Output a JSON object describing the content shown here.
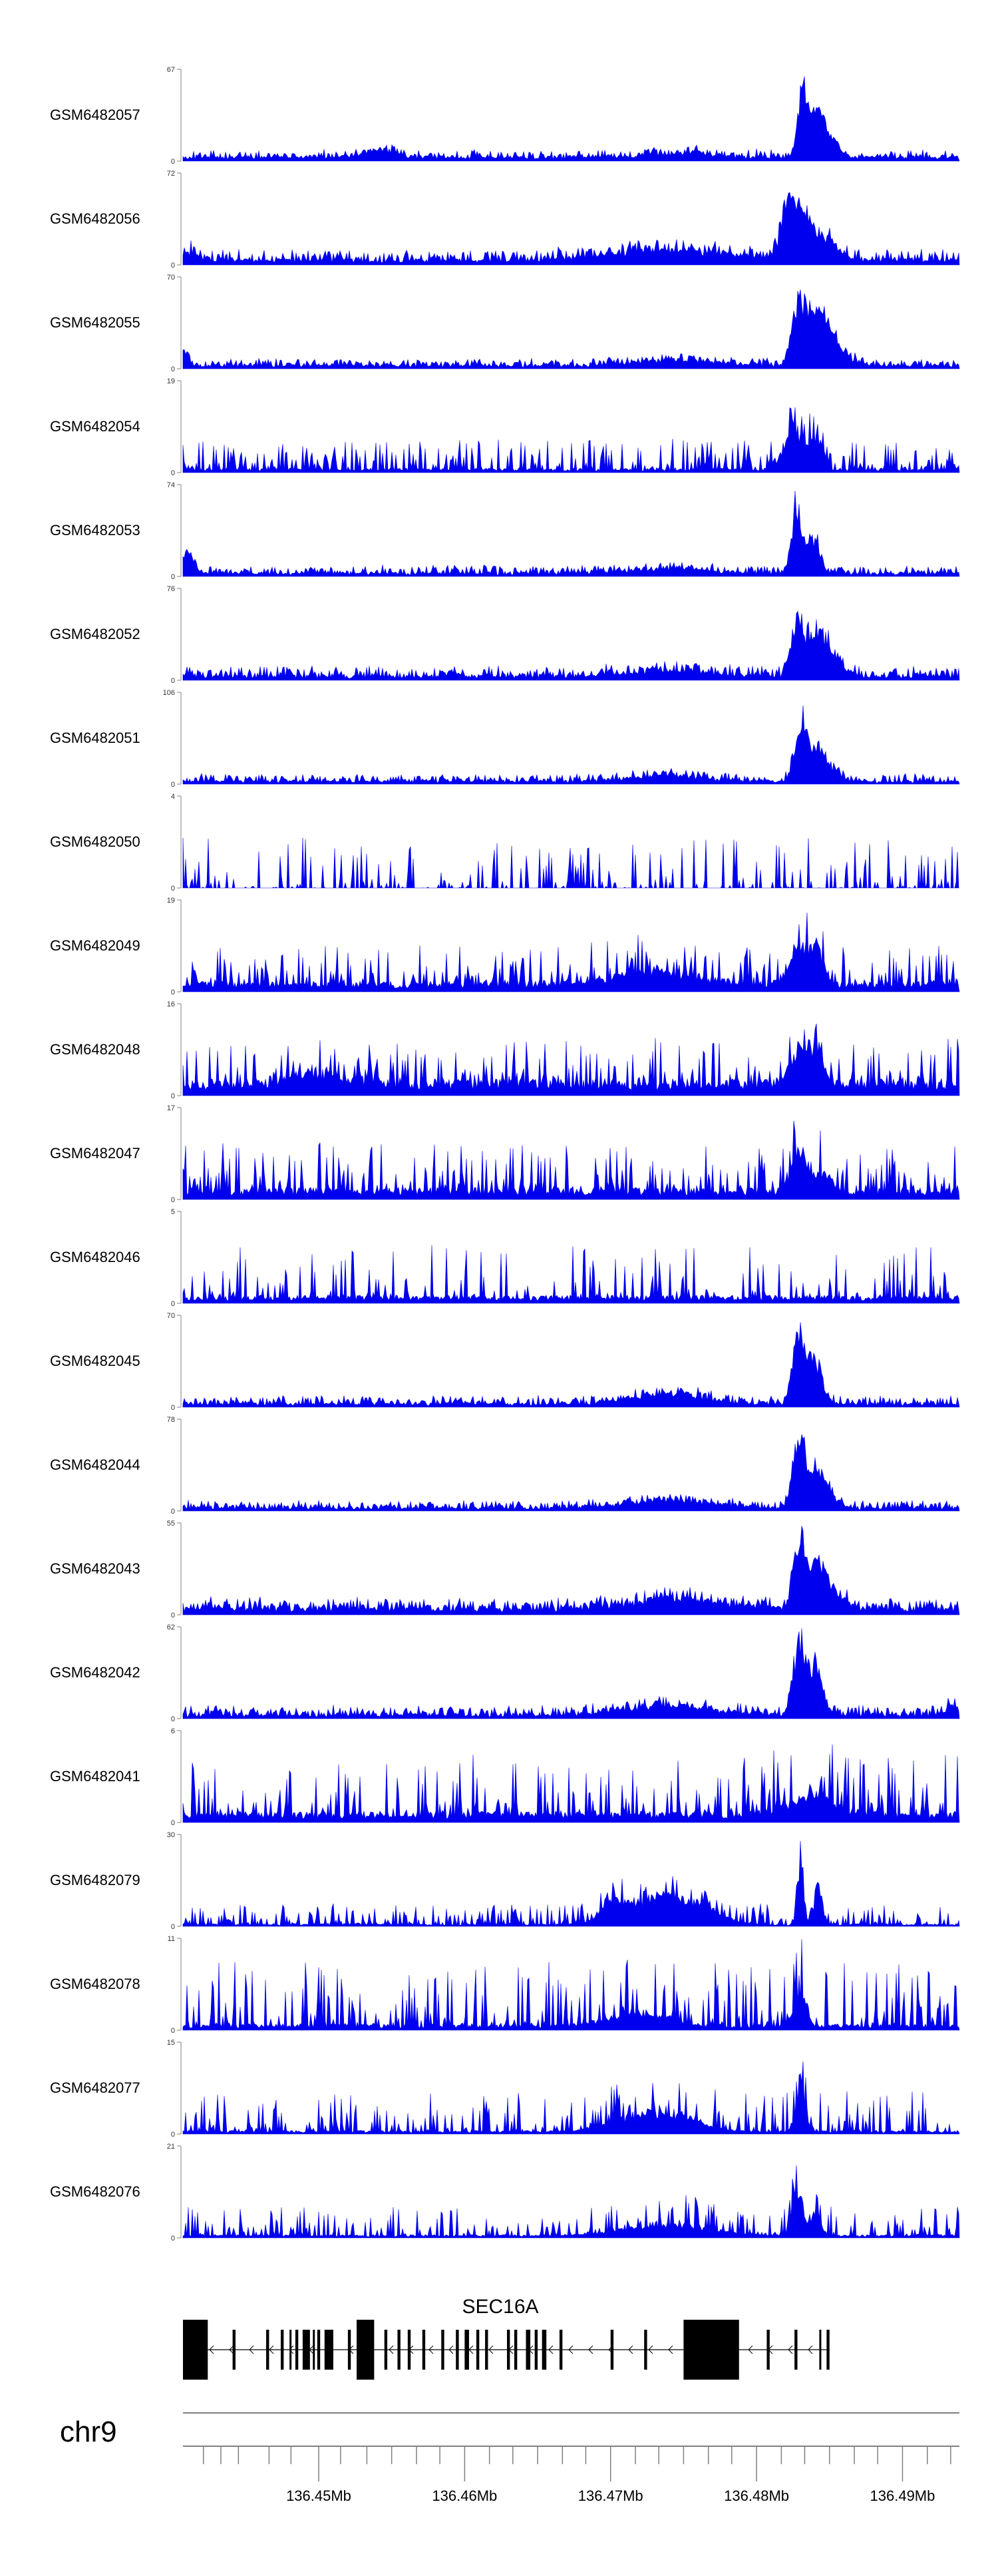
{
  "chart_data": {
    "type": "area",
    "chromosome": "chr9",
    "series_color": "#0000ee",
    "axis_color": "#808080",
    "xlim": [
      136.4407,
      136.4939
    ],
    "x_ticks": [
      {
        "label": "",
        "value": 136.4421
      },
      {
        "label": "",
        "value": 136.4433
      },
      {
        "label": "",
        "value": 136.4445
      },
      {
        "label": "",
        "value": 136.4466
      },
      {
        "label": "",
        "value": 136.4481
      },
      {
        "label": "136.45Mb",
        "value": 136.45
      },
      {
        "label": "",
        "value": 136.4515
      },
      {
        "label": "",
        "value": 136.4533
      },
      {
        "label": "",
        "value": 136.455
      },
      {
        "label": "",
        "value": 136.4567
      },
      {
        "label": "",
        "value": 136.4583
      },
      {
        "label": "136.46Mb",
        "value": 136.46
      },
      {
        "label": "",
        "value": 136.4617
      },
      {
        "label": "",
        "value": 136.4633
      },
      {
        "label": "",
        "value": 136.465
      },
      {
        "label": "",
        "value": 136.4667
      },
      {
        "label": "",
        "value": 136.4683
      },
      {
        "label": "136.47Mb",
        "value": 136.47
      },
      {
        "label": "",
        "value": 136.4717
      },
      {
        "label": "",
        "value": 136.4733
      },
      {
        "label": "",
        "value": 136.475
      },
      {
        "label": "",
        "value": 136.4767
      },
      {
        "label": "",
        "value": 136.4783
      },
      {
        "label": "136.48Mb",
        "value": 136.48
      },
      {
        "label": "",
        "value": 136.4817
      },
      {
        "label": "",
        "value": 136.4833
      },
      {
        "label": "",
        "value": 136.485
      },
      {
        "label": "",
        "value": 136.4867
      },
      {
        "label": "",
        "value": 136.4883
      },
      {
        "label": "136.49Mb",
        "value": 136.49
      },
      {
        "label": "",
        "value": 136.4917
      },
      {
        "label": "",
        "value": 136.4933
      }
    ],
    "gene": {
      "name": "SEC16A",
      "start": 136.4407,
      "end": 136.485,
      "strand": "-",
      "exons": [
        [
          136.4407,
          136.4424
        ],
        [
          136.4441,
          136.4443
        ],
        [
          136.4464,
          136.4466
        ],
        [
          136.4474,
          136.4476
        ],
        [
          136.448,
          136.4481
        ],
        [
          136.4484,
          136.4486
        ],
        [
          136.4489,
          136.4494
        ],
        [
          136.4496,
          136.4497
        ],
        [
          136.4499,
          136.4501
        ],
        [
          136.4504,
          136.451
        ],
        [
          136.452,
          136.4522
        ],
        [
          136.4526,
          136.4538
        ],
        [
          136.4545,
          136.4547
        ],
        [
          136.4554,
          136.4556
        ],
        [
          136.4561,
          136.4563
        ],
        [
          136.4571,
          136.4573
        ],
        [
          136.4584,
          136.4586
        ],
        [
          136.4594,
          136.4596
        ],
        [
          136.46,
          136.4603
        ],
        [
          136.4608,
          136.461
        ],
        [
          136.4614,
          136.4616
        ],
        [
          136.4629,
          136.4631
        ],
        [
          136.4634,
          136.4636
        ],
        [
          136.4642,
          136.4645
        ],
        [
          136.4648,
          136.465
        ],
        [
          136.4653,
          136.4656
        ],
        [
          136.4665,
          136.4667
        ],
        [
          136.47,
          136.4702
        ],
        [
          136.4723,
          136.4725
        ],
        [
          136.475,
          136.4788
        ],
        [
          136.4807,
          136.4809
        ],
        [
          136.4826,
          136.4828
        ],
        [
          136.4843,
          136.4844
        ],
        [
          136.4848,
          136.485
        ]
      ]
    },
    "tracks": [
      {
        "name": "GSM6482057",
        "ymax": 67,
        "base": 2.5,
        "noise": 2.5,
        "rough": 0.8,
        "seed": 57,
        "bumps": [
          [
            136.4832,
            0.00035,
            58
          ],
          [
            136.4842,
            0.0004,
            40
          ],
          [
            136.485,
            0.0006,
            15
          ],
          [
            136.454,
            0.0012,
            6
          ],
          [
            136.4745,
            0.002,
            4
          ]
        ]
      },
      {
        "name": "GSM6482056",
        "ymax": 72,
        "base": 3,
        "noise": 4,
        "rough": 1.2,
        "seed": 56,
        "bumps": [
          [
            136.4822,
            0.0005,
            55
          ],
          [
            136.4833,
            0.0006,
            40
          ],
          [
            136.4848,
            0.0008,
            18
          ],
          [
            136.474,
            0.004,
            10
          ],
          [
            136.4412,
            0.0005,
            8
          ]
        ]
      },
      {
        "name": "GSM6482055",
        "ymax": 70,
        "base": 2,
        "noise": 2.5,
        "rough": 1.0,
        "seed": 55,
        "bumps": [
          [
            136.4828,
            0.0004,
            60
          ],
          [
            136.4838,
            0.0005,
            48
          ],
          [
            136.4847,
            0.0006,
            30
          ],
          [
            136.4858,
            0.0008,
            12
          ],
          [
            136.4745,
            0.0025,
            6
          ],
          [
            136.4408,
            0.0003,
            15
          ]
        ]
      },
      {
        "name": "GSM6482054",
        "ymax": 19,
        "base": 0.6,
        "noise": 2.8,
        "rough": 0.6,
        "seed": 54,
        "bumps": [
          [
            136.4825,
            0.0006,
            11
          ],
          [
            136.484,
            0.0005,
            8
          ]
        ]
      },
      {
        "name": "GSM6482053",
        "ymax": 74,
        "base": 2,
        "noise": 3,
        "rough": 1.0,
        "seed": 53,
        "bumps": [
          [
            136.4827,
            0.0003,
            65
          ],
          [
            136.4838,
            0.0005,
            38
          ],
          [
            136.441,
            0.0004,
            20
          ],
          [
            136.474,
            0.0025,
            5
          ]
        ]
      },
      {
        "name": "GSM6482052",
        "ymax": 76,
        "base": 2.5,
        "noise": 4,
        "rough": 1.2,
        "seed": 52,
        "bumps": [
          [
            136.4828,
            0.0004,
            60
          ],
          [
            136.484,
            0.0006,
            42
          ],
          [
            136.4852,
            0.0007,
            20
          ],
          [
            136.474,
            0.003,
            6
          ]
        ]
      },
      {
        "name": "GSM6482051",
        "ymax": 106,
        "base": 2.5,
        "noise": 4,
        "rough": 1.2,
        "seed": 51,
        "bumps": [
          [
            136.483,
            0.0004,
            85
          ],
          [
            136.484,
            0.0005,
            40
          ],
          [
            136.485,
            0.0006,
            20
          ],
          [
            136.474,
            0.0025,
            8
          ]
        ]
      },
      {
        "name": "GSM6482050",
        "ymax": 4,
        "base": 0.0,
        "noise": 1.0,
        "rough": 0.35,
        "seed": 50,
        "bumps": []
      },
      {
        "name": "GSM6482049",
        "ymax": 19,
        "base": 1.5,
        "noise": 3.5,
        "rough": 0.5,
        "seed": 49,
        "bumps": [
          [
            136.4828,
            0.0006,
            9
          ],
          [
            136.4841,
            0.0005,
            9
          ],
          [
            136.473,
            0.003,
            3
          ]
        ]
      },
      {
        "name": "GSM6482048",
        "ymax": 16,
        "base": 2.0,
        "noise": 3.5,
        "rough": 0.5,
        "seed": 48,
        "bumps": [
          [
            136.4828,
            0.0006,
            7
          ],
          [
            136.4841,
            0.0005,
            8
          ],
          [
            136.45,
            0.002,
            2
          ]
        ]
      },
      {
        "name": "GSM6482047",
        "ymax": 17,
        "base": 1.5,
        "noise": 4.0,
        "rough": 0.5,
        "seed": 47,
        "bumps": [
          [
            136.483,
            0.0006,
            8
          ],
          [
            136.4845,
            0.0006,
            4
          ]
        ]
      },
      {
        "name": "GSM6482046",
        "ymax": 5,
        "base": 0.3,
        "noise": 1.3,
        "rough": 0.35,
        "seed": 46,
        "bumps": []
      },
      {
        "name": "GSM6482045",
        "ymax": 70,
        "base": 2,
        "noise": 3,
        "rough": 1.0,
        "seed": 45,
        "bumps": [
          [
            136.4829,
            0.0004,
            62
          ],
          [
            136.484,
            0.0005,
            42
          ],
          [
            136.474,
            0.0025,
            9
          ]
        ]
      },
      {
        "name": "GSM6482044",
        "ymax": 78,
        "base": 2,
        "noise": 3,
        "rough": 1.0,
        "seed": 44,
        "bumps": [
          [
            136.4829,
            0.0004,
            68
          ],
          [
            136.484,
            0.0005,
            40
          ],
          [
            136.485,
            0.0006,
            15
          ],
          [
            136.474,
            0.003,
            8
          ]
        ]
      },
      {
        "name": "GSM6482043",
        "ymax": 55,
        "base": 3,
        "noise": 3,
        "rough": 1.0,
        "seed": 43,
        "bumps": [
          [
            136.4829,
            0.0004,
            46
          ],
          [
            136.484,
            0.0006,
            30
          ],
          [
            136.4852,
            0.0008,
            12
          ],
          [
            136.4745,
            0.003,
            8
          ]
        ]
      },
      {
        "name": "GSM6482042",
        "ymax": 62,
        "base": 2,
        "noise": 3,
        "rough": 1.0,
        "seed": 42,
        "bumps": [
          [
            136.4829,
            0.0004,
            55
          ],
          [
            136.484,
            0.0005,
            38
          ],
          [
            136.474,
            0.003,
            8
          ],
          [
            136.4935,
            0.0005,
            8
          ]
        ]
      },
      {
        "name": "GSM6482041",
        "ymax": 6,
        "base": 0.5,
        "noise": 1.8,
        "rough": 0.4,
        "seed": 41,
        "bumps": [
          [
            136.4838,
            0.0015,
            1.5
          ]
        ]
      },
      {
        "name": "GSM6482079",
        "ymax": 30,
        "base": 0.6,
        "noise": 3,
        "rough": 0.6,
        "seed": 79,
        "bumps": [
          [
            136.47,
            0.0006,
            9
          ],
          [
            136.473,
            0.002,
            10
          ],
          [
            136.476,
            0.0015,
            6
          ],
          [
            136.483,
            0.0002,
            28
          ],
          [
            136.4842,
            0.0003,
            14
          ]
        ]
      },
      {
        "name": "GSM6482078",
        "ymax": 11,
        "base": 0.5,
        "noise": 3.5,
        "rough": 0.5,
        "seed": 78,
        "bumps": [
          [
            136.472,
            0.002,
            2
          ],
          [
            136.483,
            0.0004,
            5
          ]
        ]
      },
      {
        "name": "GSM6482077",
        "ymax": 15,
        "base": 0.4,
        "noise": 3.0,
        "rough": 0.5,
        "seed": 77,
        "bumps": [
          [
            136.473,
            0.0025,
            4
          ],
          [
            136.483,
            0.0003,
            10
          ]
        ]
      },
      {
        "name": "GSM6482076",
        "ymax": 21,
        "base": 0.5,
        "noise": 3.0,
        "rough": 0.5,
        "seed": 76,
        "bumps": [
          [
            136.4828,
            0.0003,
            14
          ],
          [
            136.484,
            0.0004,
            6
          ],
          [
            136.474,
            0.003,
            3
          ]
        ]
      }
    ]
  }
}
